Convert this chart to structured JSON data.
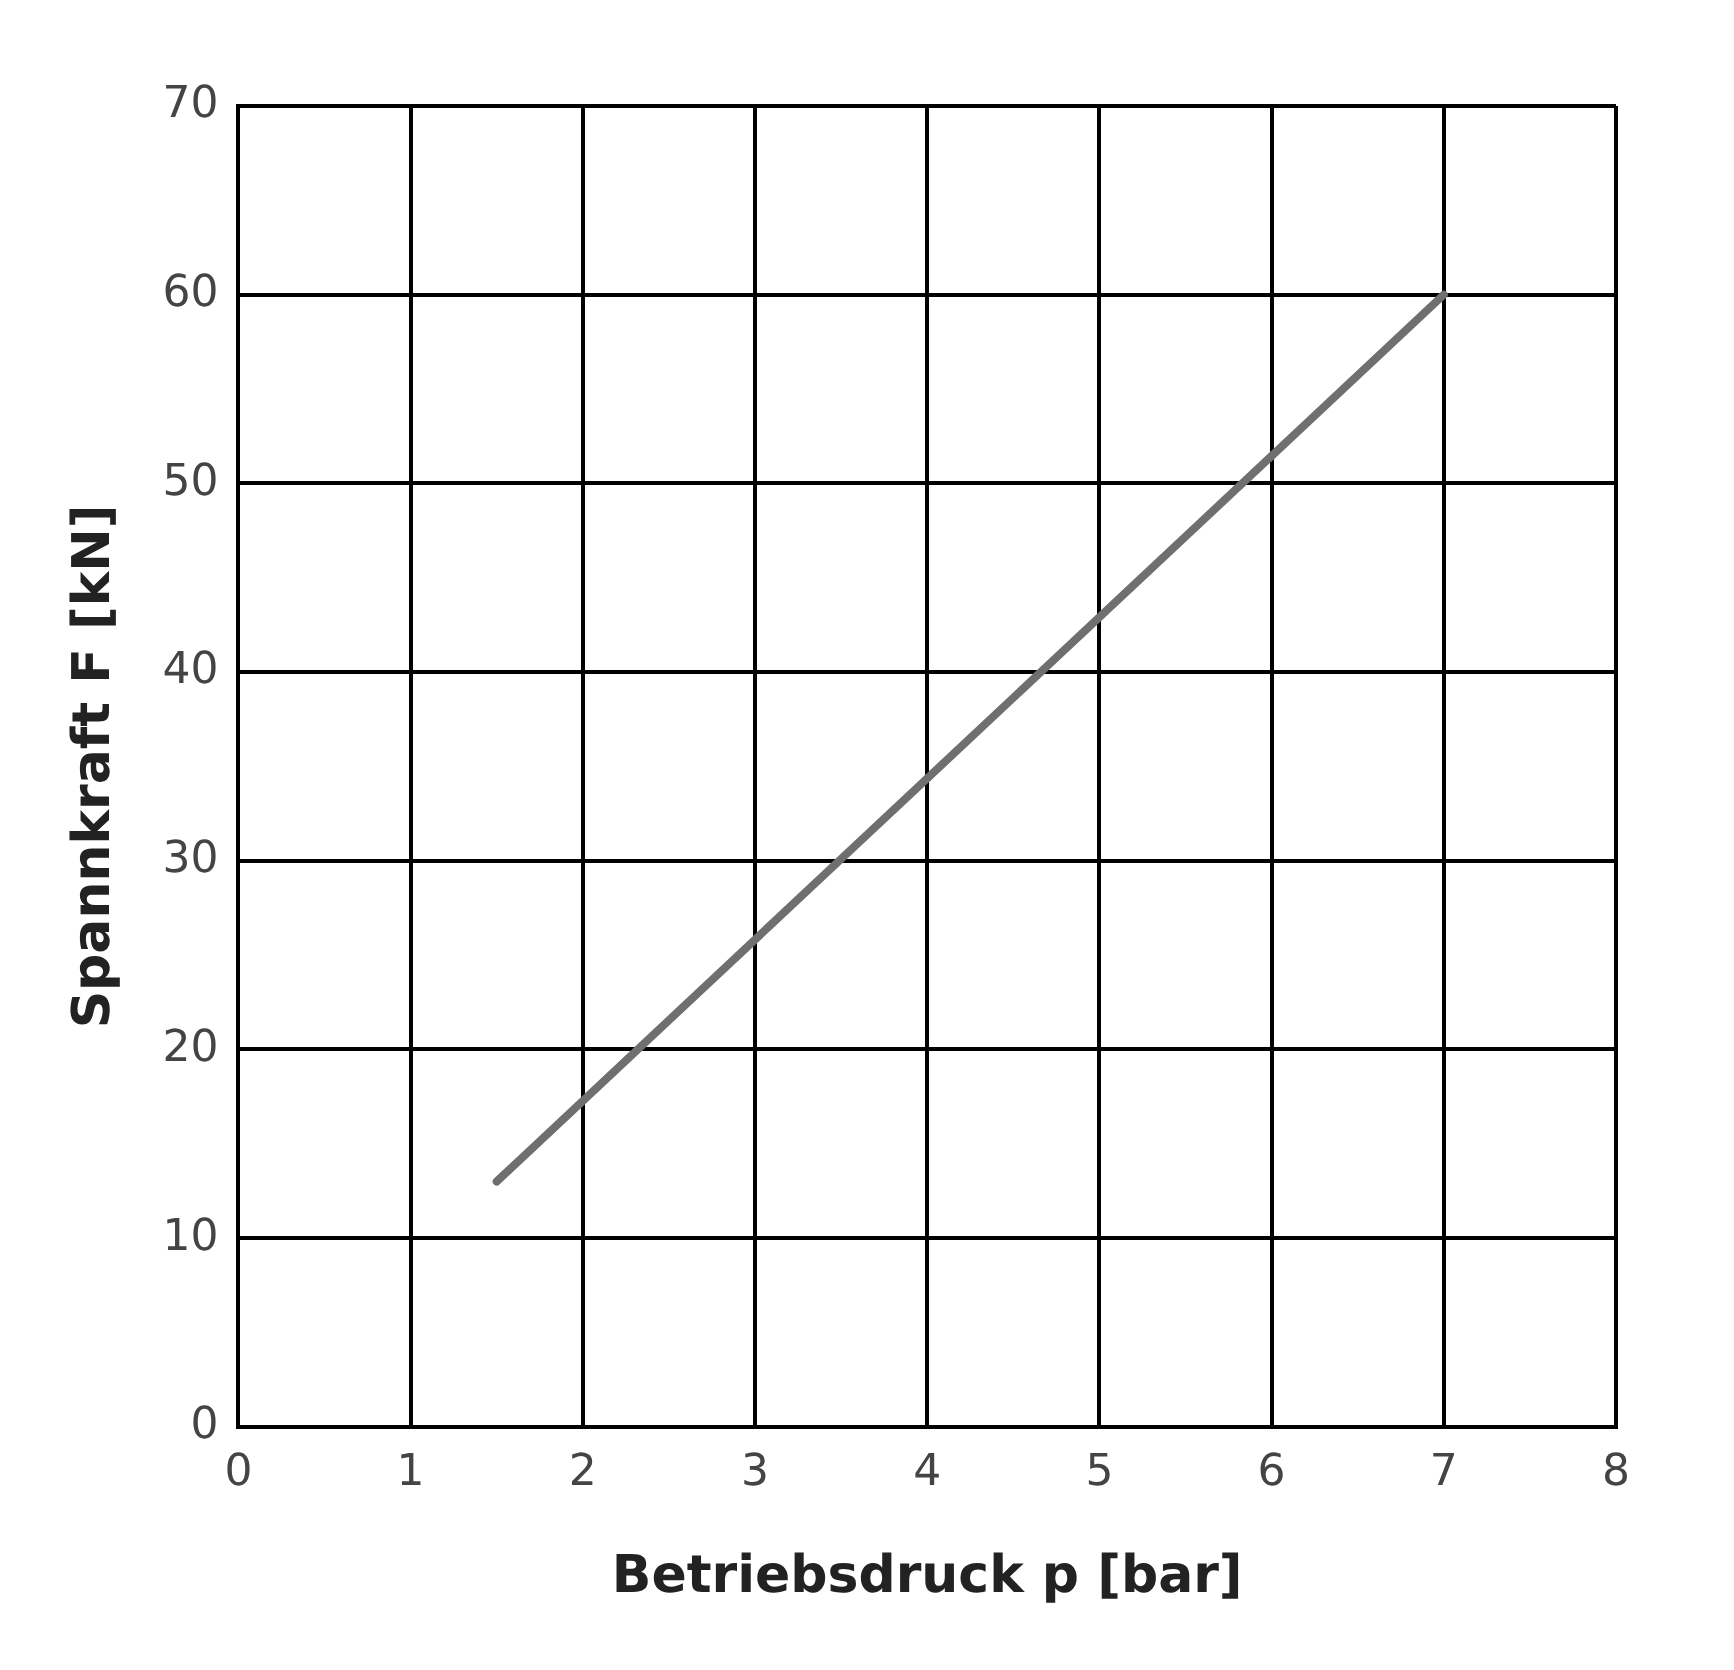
{
  "chart_data": {
    "type": "line",
    "xlabel": "Betriebsdruck p [bar]",
    "ylabel": "Spannkraft F [kN]",
    "x": [
      1.5,
      7
    ],
    "series": [
      {
        "color": "#6f6f6f",
        "values": [
          13,
          60
        ]
      }
    ],
    "xlim": [
      0,
      8
    ],
    "xticks": [
      0,
      1,
      2,
      3,
      4,
      5,
      6,
      7,
      8
    ],
    "ylim": [
      0,
      70
    ],
    "yticks": [
      0,
      10,
      20,
      30,
      40,
      50,
      60,
      70
    ],
    "grid": true,
    "legend": false,
    "marker": "none",
    "line_style": "solid"
  }
}
